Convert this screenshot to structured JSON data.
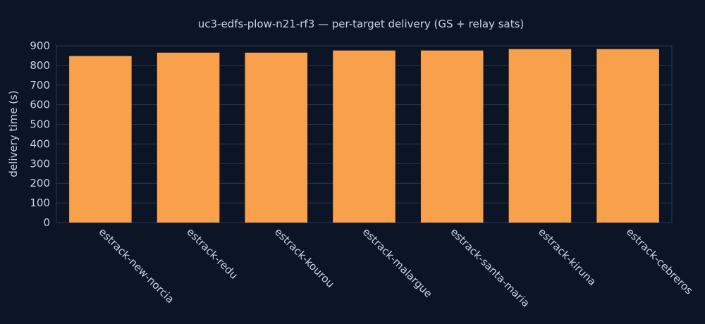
{
  "chart_data": {
    "type": "bar",
    "title": "uc3-edfs-plow-n21-rf3 — per-target delivery (GS + relay sats)",
    "xlabel": "",
    "ylabel": "delivery time (s)",
    "categories": [
      "estrack-new-norcia",
      "estrack-redu",
      "estrack-kourou",
      "estrack-malargue",
      "estrack-santa-maria",
      "estrack-kiruna",
      "estrack-cebreros"
    ],
    "values": [
      848,
      865,
      865,
      876,
      876,
      883,
      883
    ],
    "ylim": [
      0,
      900
    ],
    "yticks": [
      0,
      100,
      200,
      300,
      400,
      500,
      600,
      700,
      800,
      900
    ],
    "bar_color": "#f8a04b",
    "background_color": "#0b1526",
    "grid": true,
    "legend": "none"
  }
}
